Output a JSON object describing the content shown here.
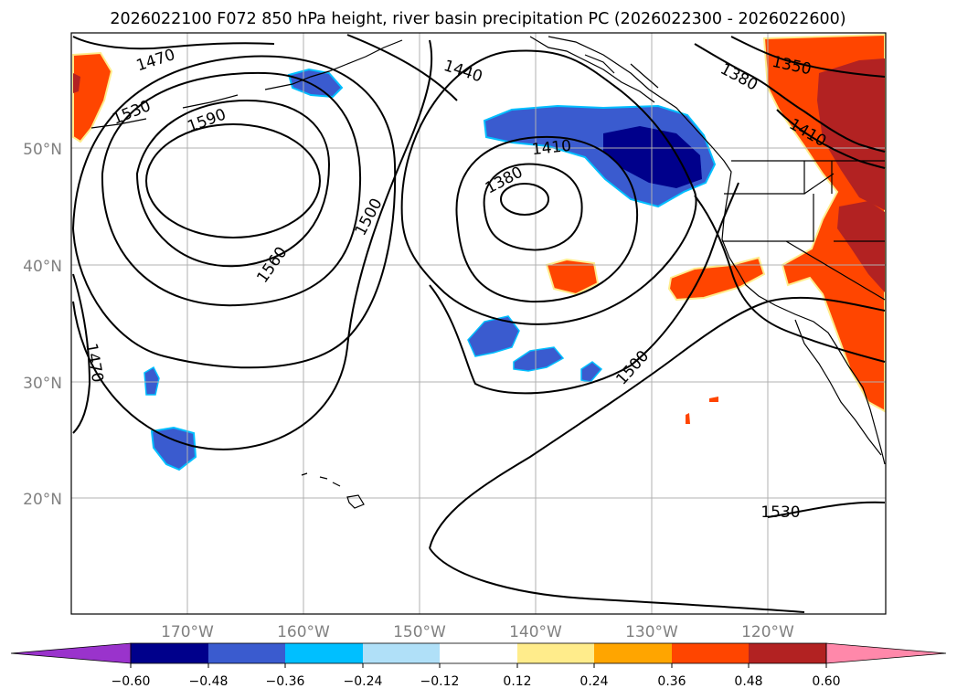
{
  "title": "2026022100 F072 850 hPa height, river basin precipitation PC (2026022300 - 2026022600)",
  "map": {
    "lon_ticks": [
      "170°W",
      "160°W",
      "150°W",
      "140°W",
      "130°W",
      "120°W"
    ],
    "lat_ticks": [
      "50°N",
      "40°N",
      "30°N",
      "20°N"
    ],
    "contour_labels": [
      "1470",
      "1530",
      "1590",
      "1440",
      "1380",
      "1350",
      "1410",
      "1410",
      "1380",
      "1500",
      "1560",
      "1470",
      "1500",
      "1530"
    ]
  },
  "colorbar": {
    "colors": [
      "#9a33cc",
      "#00008b",
      "#3a5bcf",
      "#00bfff",
      "#b0e0f8",
      "#ffffff",
      "#ffec8b",
      "#ffa500",
      "#ff4500",
      "#b22222",
      "#ff88aa"
    ],
    "tick_labels": [
      "−0.60",
      "−0.48",
      "−0.36",
      "−0.24",
      "−0.12",
      "0.12",
      "0.24",
      "0.36",
      "0.48",
      "0.60"
    ]
  }
}
